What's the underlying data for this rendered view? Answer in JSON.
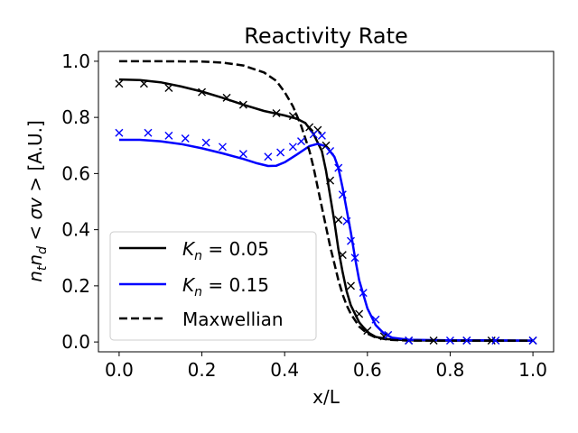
{
  "chart_data": {
    "type": "line",
    "title": "Reactivity Rate",
    "xlabel": "x/L",
    "ylabel": "n_t n_d < σv > [A.U.]",
    "ylabel_parts": {
      "n": "n",
      "t": "t",
      "n2": "n",
      "d": "d",
      "lt": " < ",
      "sigma_v": "σv",
      "gt": " > ",
      "unit": " [A.U.]"
    },
    "xlim": [
      -0.05,
      1.05
    ],
    "ylim": [
      -0.035,
      1.035
    ],
    "xticks": [
      0.0,
      0.2,
      0.4,
      0.6,
      0.8,
      1.0
    ],
    "xtick_labels": [
      "0.0",
      "0.2",
      "0.4",
      "0.6",
      "0.8",
      "1.0"
    ],
    "yticks": [
      0.0,
      0.2,
      0.4,
      0.6,
      0.8,
      1.0
    ],
    "ytick_labels": [
      "0.0",
      "0.2",
      "0.4",
      "0.6",
      "0.8",
      "1.0"
    ],
    "legend_position": "lower-left",
    "series": [
      {
        "name": "K_n = 0.05",
        "legend": {
          "k": "K",
          "sub": "n",
          "eq": " = 0.05"
        },
        "color": "#000000",
        "dash": "solid",
        "x": [
          0.0,
          0.05,
          0.1,
          0.15,
          0.2,
          0.25,
          0.3,
          0.35,
          0.4,
          0.43,
          0.45,
          0.47,
          0.49,
          0.5,
          0.51,
          0.52,
          0.53,
          0.54,
          0.55,
          0.56,
          0.58,
          0.6,
          0.62,
          0.65,
          0.7,
          0.8,
          0.9,
          1.0
        ],
        "y": [
          0.935,
          0.933,
          0.925,
          0.91,
          0.892,
          0.87,
          0.845,
          0.823,
          0.807,
          0.795,
          0.78,
          0.74,
          0.68,
          0.61,
          0.52,
          0.43,
          0.33,
          0.25,
          0.18,
          0.13,
          0.07,
          0.035,
          0.018,
          0.01,
          0.006,
          0.005,
          0.005,
          0.005
        ]
      },
      {
        "name": "K_n = 0.15",
        "legend": {
          "k": "K",
          "sub": "n",
          "eq": " = 0.15"
        },
        "color": "#0000ff",
        "dash": "solid",
        "x": [
          0.0,
          0.05,
          0.1,
          0.15,
          0.2,
          0.25,
          0.3,
          0.33,
          0.36,
          0.38,
          0.4,
          0.43,
          0.46,
          0.48,
          0.5,
          0.52,
          0.53,
          0.54,
          0.55,
          0.56,
          0.57,
          0.58,
          0.6,
          0.62,
          0.64,
          0.66,
          0.7,
          0.8,
          0.9,
          1.0
        ],
        "y": [
          0.72,
          0.72,
          0.715,
          0.705,
          0.69,
          0.672,
          0.652,
          0.638,
          0.627,
          0.628,
          0.64,
          0.668,
          0.698,
          0.706,
          0.697,
          0.66,
          0.62,
          0.55,
          0.47,
          0.39,
          0.3,
          0.22,
          0.12,
          0.06,
          0.03,
          0.015,
          0.008,
          0.006,
          0.006,
          0.005
        ]
      },
      {
        "name": "Maxwellian",
        "legend": {
          "label": "Maxwellian"
        },
        "color": "#000000",
        "dash": "dashed",
        "x": [
          0.0,
          0.1,
          0.2,
          0.25,
          0.3,
          0.35,
          0.38,
          0.4,
          0.42,
          0.44,
          0.46,
          0.47,
          0.48,
          0.49,
          0.5,
          0.51,
          0.52,
          0.53,
          0.54,
          0.55,
          0.56,
          0.58,
          0.6,
          0.62,
          0.65,
          0.7,
          0.8,
          0.9,
          1.0
        ],
        "y": [
          1.0,
          1.0,
          0.999,
          0.995,
          0.985,
          0.96,
          0.93,
          0.89,
          0.84,
          0.77,
          0.68,
          0.62,
          0.55,
          0.48,
          0.41,
          0.34,
          0.28,
          0.22,
          0.17,
          0.13,
          0.1,
          0.055,
          0.03,
          0.016,
          0.008,
          0.005,
          0.005,
          0.005,
          0.005
        ]
      }
    ],
    "markers": [
      {
        "name": "K_n = 0.05 samples",
        "color": "#000000",
        "symbol": "x",
        "x": [
          0.0,
          0.06,
          0.12,
          0.2,
          0.26,
          0.3,
          0.38,
          0.42,
          0.46,
          0.48,
          0.5,
          0.51,
          0.53,
          0.54,
          0.56,
          0.58,
          0.6,
          0.64,
          0.7,
          0.76,
          0.84,
          0.9,
          1.0
        ],
        "y": [
          0.92,
          0.92,
          0.905,
          0.89,
          0.87,
          0.845,
          0.815,
          0.805,
          0.765,
          0.755,
          0.7,
          0.575,
          0.435,
          0.31,
          0.2,
          0.1,
          0.04,
          0.02,
          0.005,
          0.005,
          0.005,
          0.005,
          0.005
        ]
      },
      {
        "name": "K_n = 0.15 samples",
        "color": "#0000ff",
        "symbol": "x",
        "x": [
          0.0,
          0.07,
          0.12,
          0.16,
          0.21,
          0.25,
          0.3,
          0.36,
          0.39,
          0.42,
          0.44,
          0.47,
          0.49,
          0.51,
          0.53,
          0.54,
          0.55,
          0.56,
          0.57,
          0.59,
          0.62,
          0.65,
          0.7,
          0.8,
          0.84,
          0.91,
          1.0
        ],
        "y": [
          0.745,
          0.745,
          0.735,
          0.725,
          0.71,
          0.695,
          0.67,
          0.66,
          0.675,
          0.695,
          0.715,
          0.74,
          0.735,
          0.68,
          0.62,
          0.525,
          0.43,
          0.36,
          0.3,
          0.175,
          0.08,
          0.025,
          0.005,
          0.005,
          0.005,
          0.005,
          0.005
        ]
      }
    ]
  }
}
